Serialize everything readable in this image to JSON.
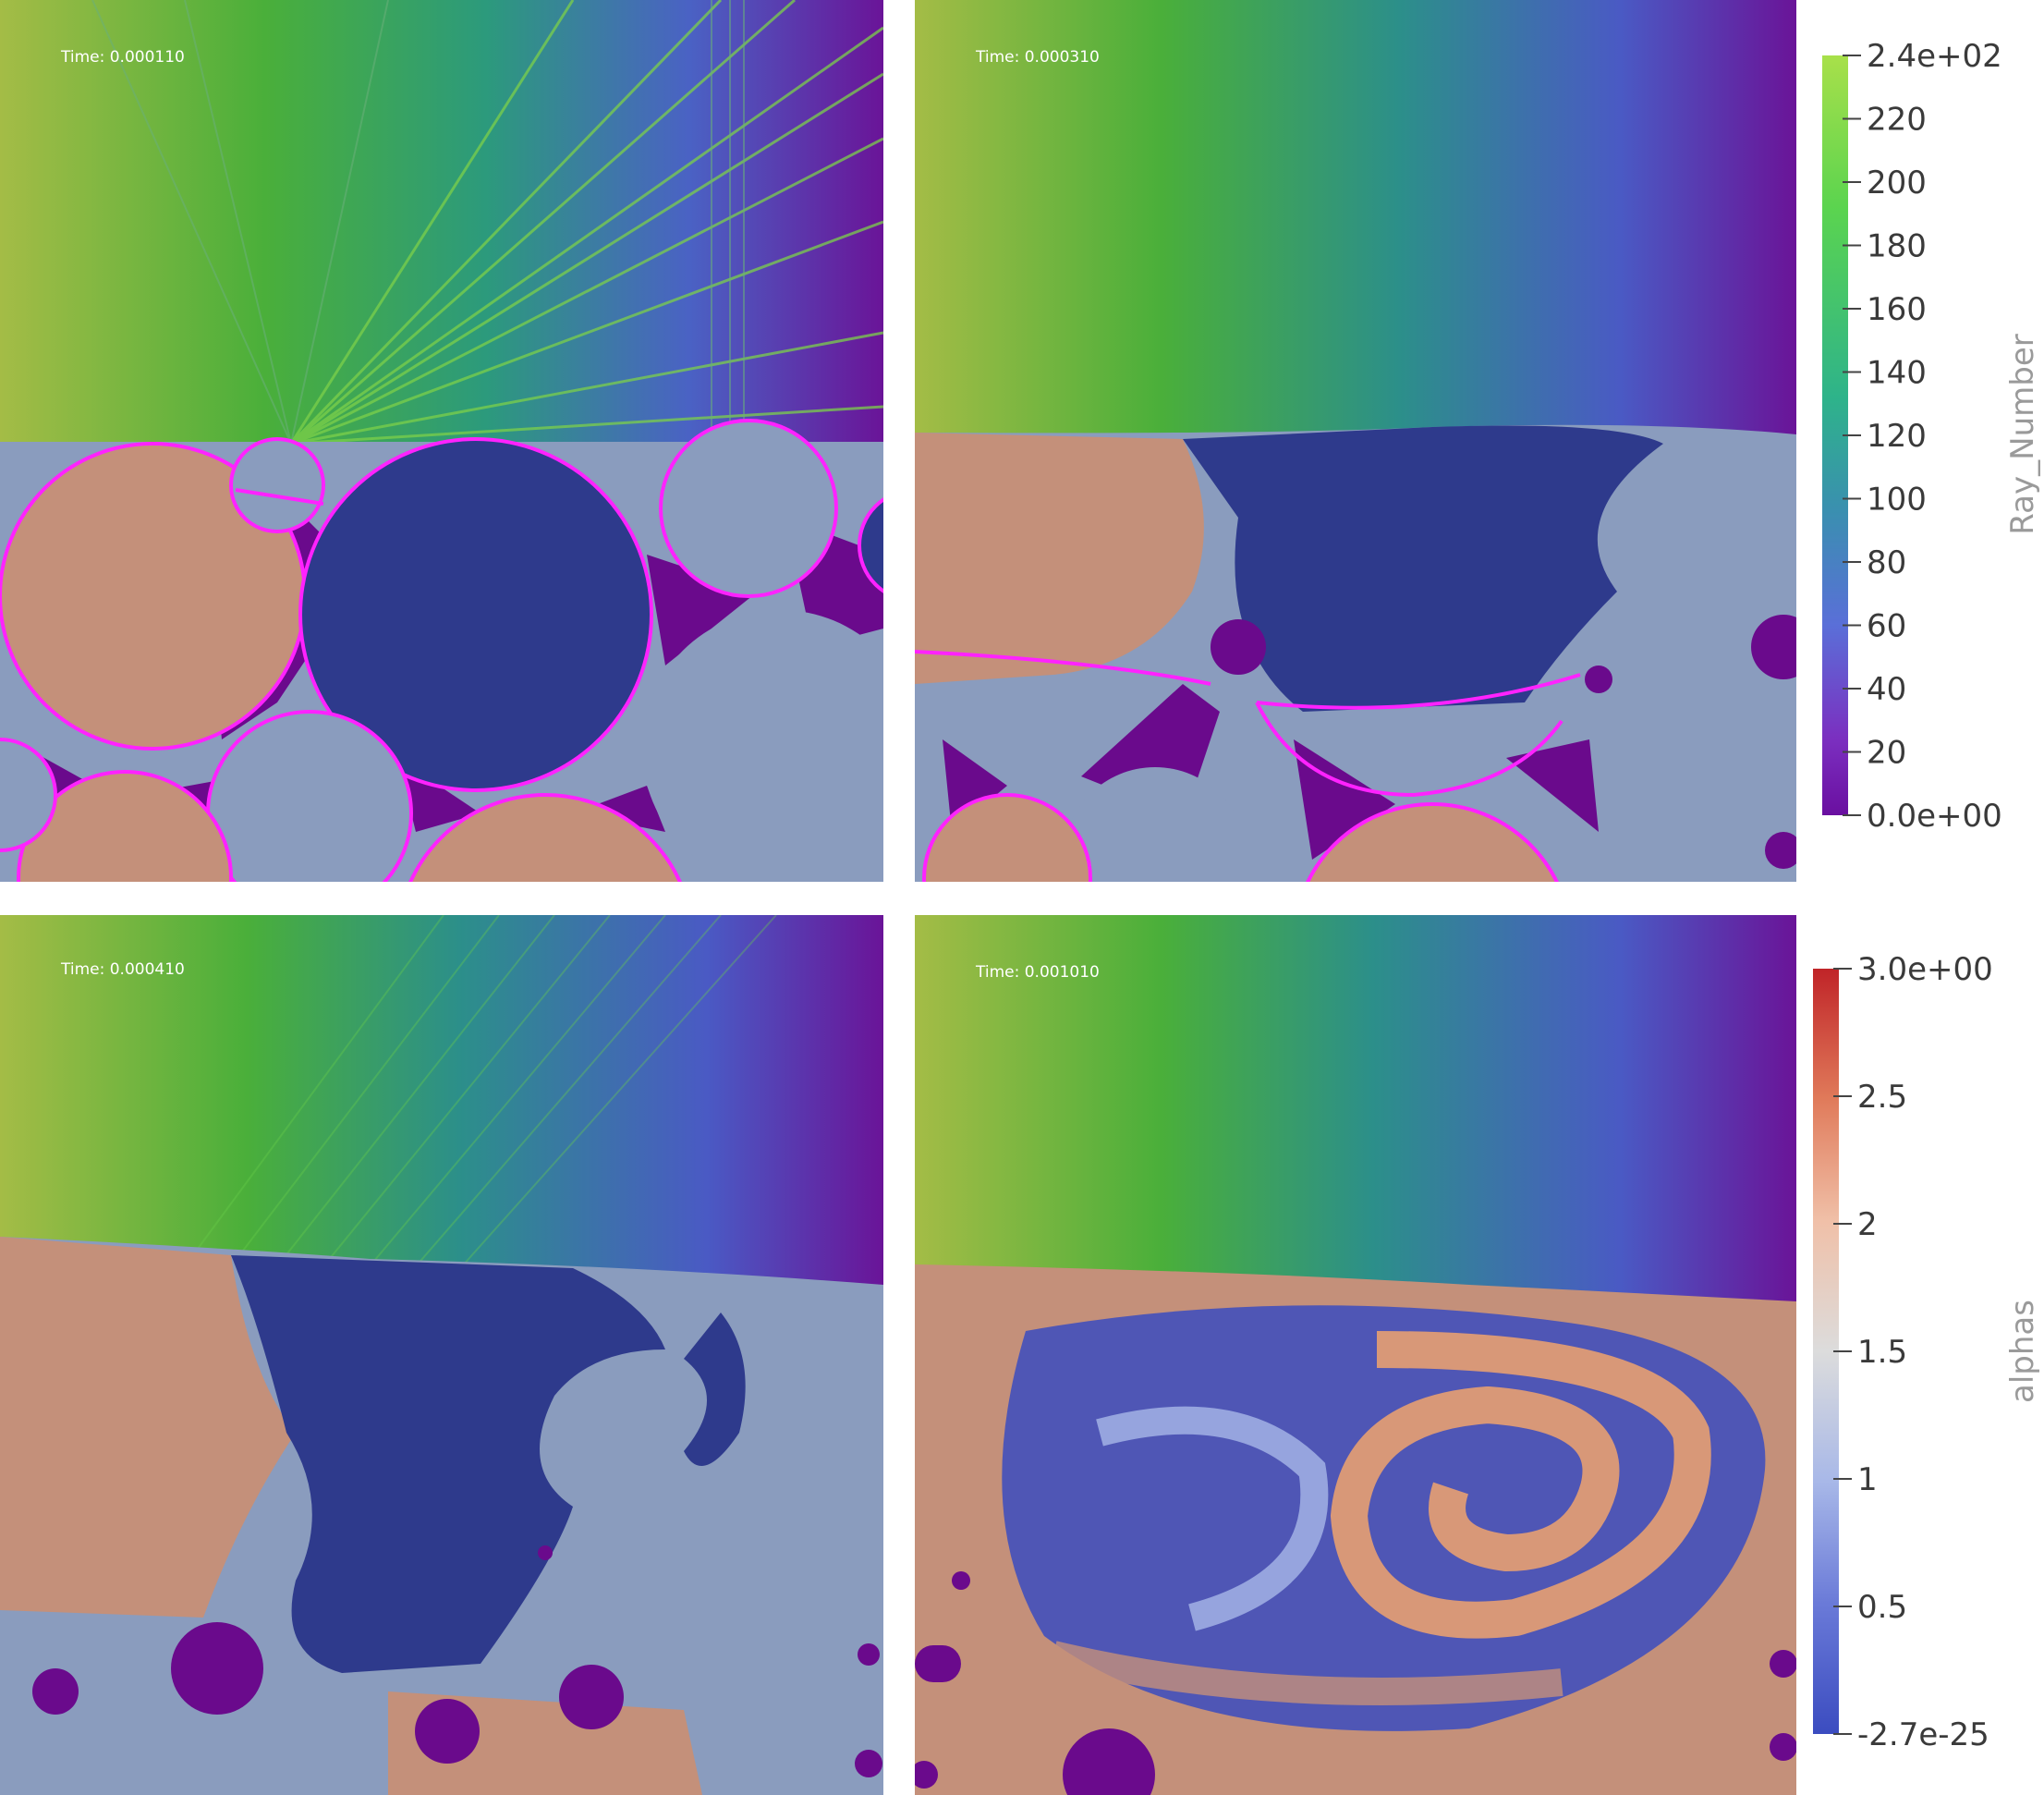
{
  "panels": [
    {
      "id": "panel-1",
      "time": "Time: 0.000110"
    },
    {
      "id": "panel-2",
      "time": "Time: 0.000310"
    },
    {
      "id": "panel-3",
      "time": "Time: 0.000410"
    },
    {
      "id": "panel-4",
      "time": "Time: 0.001010"
    }
  ],
  "colorbars": {
    "ray": {
      "title": "Ray_Number",
      "ticks": [
        "2.4e+02",
        "220",
        "200",
        "180",
        "160",
        "140",
        "120",
        "100",
        "80",
        "60",
        "40",
        "20",
        "0.0e+00"
      ],
      "colors": [
        "#a8e04a",
        "#5bd44f",
        "#2eb38a",
        "#3a8fb0",
        "#5a6fd8",
        "#7b2fc0",
        "#6a0fa0"
      ]
    },
    "alphas": {
      "title": "alphas",
      "ticks": [
        "3.0e+00",
        "2.5",
        "2",
        "1.5",
        "1",
        "0.5",
        "-2.7e-25"
      ],
      "colors": [
        "#c02428",
        "#e8896a",
        "#f0c8b0",
        "#dcdcdc",
        "#a8b8e8",
        "#5a6ad0",
        "#3b4cc0"
      ]
    }
  },
  "palette": {
    "salmon": "#c4907a",
    "greyblue": "#8a9cbe",
    "darkblue": "#2e3a8c",
    "purple": "#6a0a8c",
    "magenta": "#ff22ff",
    "green_left": "#9bb84a",
    "green_mid": "#4aaa3a",
    "teal": "#2a8a8a",
    "blue_right": "#4a5ac0",
    "purple_right": "#6a1a9a"
  }
}
